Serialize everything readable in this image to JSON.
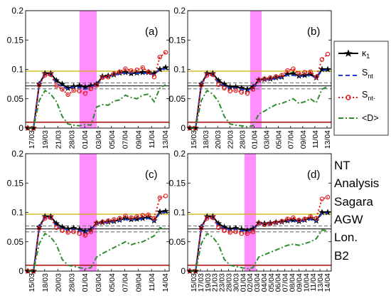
{
  "chart_data": [
    {
      "type": "line",
      "panel_label": "(a)",
      "ylim": [
        0,
        0.2
      ],
      "yticks": [
        0,
        0.05,
        0.1,
        0.15,
        0.2
      ],
      "ytick_labels": [
        "0",
        "0.05",
        "0.1",
        "0.15",
        "0.2"
      ],
      "xtick_labels": [
        "17/03",
        "19/03",
        "21/03",
        "28/03",
        "01/04",
        "03/04",
        "05/04",
        "07/04",
        "09/04",
        "11/04",
        "13/04"
      ],
      "shaded_range": [
        9,
        12
      ],
      "hlines": [
        {
          "y": 0.097,
          "color": "#c9b400",
          "style": "solid"
        },
        {
          "y": 0.077,
          "color": "#7f7f7f",
          "style": "dashed"
        },
        {
          "y": 0.072,
          "color": "#333333",
          "style": "solid"
        },
        {
          "y": 0.067,
          "color": "#7f7f7f",
          "style": "dashed"
        },
        {
          "y": 0.01,
          "color": "#b22222",
          "style": "solid"
        }
      ],
      "series": [
        {
          "name": "κ1",
          "color": "#000000",
          "values": [
            0,
            0,
            0.075,
            0.093,
            0.093,
            0.081,
            0.075,
            0.068,
            0.071,
            0.072,
            0.07,
            0.072,
            0.075,
            0.088,
            0.089,
            0.091,
            0.094,
            0.095,
            0.093,
            0.094,
            0.095,
            0.095,
            0.093,
            0.1,
            0.103
          ]
        },
        {
          "name": "Snt",
          "color": "#1f3fd6",
          "values": [
            0,
            0,
            0.076,
            0.091,
            0.09,
            0.076,
            0.071,
            0.066,
            0.07,
            0.069,
            0.066,
            0.07,
            0.073,
            0.086,
            0.088,
            0.09,
            0.093,
            0.094,
            0.094,
            0.093,
            0.094,
            0.093,
            0.091,
            0.1,
            0.101
          ]
        },
        {
          "name": "Snt-",
          "color": "#e41a1c",
          "values": [
            0,
            0,
            0.073,
            0.09,
            0.091,
            0.072,
            0.066,
            0.057,
            0.064,
            0.063,
            0.059,
            0.067,
            0.073,
            0.086,
            0.087,
            0.093,
            0.096,
            0.101,
            0.098,
            0.099,
            0.103,
            0.096,
            0.087,
            0.121,
            0.129
          ]
        },
        {
          "name": "<D>",
          "color": "#2e8b2e",
          "values": [
            0,
            0,
            0.047,
            0.064,
            0.058,
            0.045,
            0.02,
            0.007,
            0.005,
            0.004,
            0.006,
            0.005,
            0.036,
            0.04,
            0.039,
            0.046,
            0.048,
            0.056,
            0.052,
            0.05,
            0.056,
            0.058,
            0.045,
            0.068,
            0.074
          ]
        }
      ]
    },
    {
      "type": "line",
      "panel_label": "(b)",
      "ylim": [
        0,
        0.2
      ],
      "yticks": [
        0,
        0.05,
        0.1,
        0.15,
        0.2
      ],
      "ytick_labels": [
        "0",
        "0.05",
        "0.1",
        "0.15",
        "0.2"
      ],
      "xtick_labels": [
        "15/03",
        "18/03",
        "20/03",
        "22/03",
        "28/03",
        "01/04",
        "03/04",
        "05/04",
        "07/04",
        "09/04",
        "11/04",
        "13/04"
      ],
      "shaded_range": [
        10.5,
        12.5
      ],
      "hlines": [
        {
          "y": 0.097,
          "color": "#c9b400",
          "style": "solid"
        },
        {
          "y": 0.077,
          "color": "#7f7f7f",
          "style": "dashed"
        },
        {
          "y": 0.072,
          "color": "#333333",
          "style": "solid"
        },
        {
          "y": 0.067,
          "color": "#7f7f7f",
          "style": "dashed"
        },
        {
          "y": 0.01,
          "color": "#b22222",
          "style": "solid"
        }
      ],
      "series": [
        {
          "name": "κ1",
          "color": "#000000",
          "values": [
            0,
            0,
            0.075,
            0.093,
            0.093,
            0.081,
            0.075,
            0.07,
            0.07,
            0.068,
            0.066,
            0.07,
            0.082,
            0.083,
            0.084,
            0.086,
            0.087,
            0.092,
            0.093,
            0.089,
            0.09,
            0.092,
            0.086,
            0.1,
            0.1
          ]
        },
        {
          "name": "Snt",
          "color": "#1f3fd6",
          "values": [
            0,
            0,
            0.076,
            0.091,
            0.09,
            0.076,
            0.072,
            0.068,
            0.068,
            0.066,
            0.064,
            0.068,
            0.081,
            0.082,
            0.083,
            0.084,
            0.086,
            0.09,
            0.09,
            0.088,
            0.089,
            0.09,
            0.085,
            0.098,
            0.099
          ]
        },
        {
          "name": "Snt-",
          "color": "#e41a1c",
          "values": [
            0,
            0,
            0.073,
            0.09,
            0.091,
            0.074,
            0.068,
            0.063,
            0.064,
            0.061,
            0.059,
            0.066,
            0.082,
            0.084,
            0.086,
            0.088,
            0.09,
            0.098,
            0.101,
            0.093,
            0.095,
            0.096,
            0.087,
            0.117,
            0.126
          ]
        },
        {
          "name": "<D>",
          "color": "#2e8b2e",
          "values": [
            0,
            0,
            0.047,
            0.064,
            0.058,
            0.045,
            0.02,
            0.007,
            0.005,
            0.004,
            0.002,
            0.004,
            0.024,
            0.029,
            0.035,
            0.04,
            0.042,
            0.046,
            0.05,
            0.042,
            0.045,
            0.05,
            0.043,
            0.066,
            0.071
          ]
        }
      ]
    },
    {
      "type": "line",
      "panel_label": "(c)",
      "ylim": [
        0,
        0.2
      ],
      "yticks": [
        0,
        0.05,
        0.1,
        0.15,
        0.2
      ],
      "ytick_labels": [
        "0",
        "0.05",
        "0.1",
        "0.15",
        "0.2"
      ],
      "xtick_labels": [
        "15/03",
        "18/03",
        "20/03",
        "28/03",
        "01/04",
        "03/04",
        "05/04",
        "07/04",
        "09/04",
        "11/04",
        "14/04"
      ],
      "shaded_range": [
        9,
        12
      ],
      "hlines": [
        {
          "y": 0.097,
          "color": "#c9b400",
          "style": "solid"
        },
        {
          "y": 0.077,
          "color": "#7f7f7f",
          "style": "dashed"
        },
        {
          "y": 0.072,
          "color": "#333333",
          "style": "solid"
        },
        {
          "y": 0.067,
          "color": "#7f7f7f",
          "style": "dashed"
        },
        {
          "y": 0.01,
          "color": "#b22222",
          "style": "solid"
        }
      ],
      "series": [
        {
          "name": "κ1",
          "color": "#000000",
          "values": [
            0,
            0,
            0.075,
            0.093,
            0.093,
            0.081,
            0.075,
            0.072,
            0.073,
            0.071,
            0.068,
            0.071,
            0.082,
            0.083,
            0.084,
            0.085,
            0.087,
            0.09,
            0.088,
            0.089,
            0.09,
            0.092,
            0.086,
            0.101,
            0.102
          ]
        },
        {
          "name": "Snt",
          "color": "#1f3fd6",
          "values": [
            0,
            0,
            0.076,
            0.091,
            0.09,
            0.076,
            0.073,
            0.07,
            0.071,
            0.069,
            0.067,
            0.07,
            0.081,
            0.082,
            0.083,
            0.084,
            0.086,
            0.088,
            0.087,
            0.088,
            0.089,
            0.09,
            0.085,
            0.099,
            0.1
          ]
        },
        {
          "name": "Snt-",
          "color": "#e41a1c",
          "values": [
            0,
            0,
            0.073,
            0.09,
            0.091,
            0.074,
            0.069,
            0.066,
            0.067,
            0.064,
            0.061,
            0.067,
            0.082,
            0.084,
            0.086,
            0.088,
            0.09,
            0.094,
            0.091,
            0.093,
            0.095,
            0.096,
            0.09,
            0.125,
            0.128
          ]
        },
        {
          "name": "<D>",
          "color": "#2e8b2e",
          "values": [
            0,
            0,
            0.047,
            0.064,
            0.058,
            0.045,
            0.02,
            0.01,
            0.008,
            0.006,
            0.004,
            0.006,
            0.024,
            0.03,
            0.035,
            0.04,
            0.045,
            0.05,
            0.045,
            0.048,
            0.05,
            0.055,
            0.06,
            0.074,
            0.072
          ]
        }
      ]
    },
    {
      "type": "line",
      "panel_label": "(d)",
      "ylim": [
        0,
        0.2
      ],
      "yticks": [
        0,
        0.05,
        0.1,
        0.15,
        0.2
      ],
      "ytick_labels": [
        "0",
        "0.05",
        "0.1",
        "0.15",
        "0.2"
      ],
      "xtick_labels": [
        "15/03",
        "17/03",
        "19/03",
        "21/03",
        "23/03",
        "28/03",
        "30/03",
        "01/04",
        "02/04",
        "03/04",
        "04/04",
        "05/04",
        "06/04",
        "07/04",
        "08/04",
        "09/04",
        "10/04",
        "11/04",
        "13/04",
        "14/04"
      ],
      "shaded_range": [
        9.5,
        11.5
      ],
      "hlines": [
        {
          "y": 0.097,
          "color": "#c9b400",
          "style": "solid"
        },
        {
          "y": 0.077,
          "color": "#7f7f7f",
          "style": "dashed"
        },
        {
          "y": 0.072,
          "color": "#333333",
          "style": "solid"
        },
        {
          "y": 0.067,
          "color": "#7f7f7f",
          "style": "dashed"
        },
        {
          "y": 0.01,
          "color": "#b22222",
          "style": "solid"
        }
      ],
      "series": [
        {
          "name": "κ1",
          "color": "#000000",
          "values": [
            0,
            0,
            0.075,
            0.093,
            0.093,
            0.081,
            0.075,
            0.072,
            0.073,
            0.071,
            0.069,
            0.072,
            0.082,
            0.081,
            0.082,
            0.083,
            0.084,
            0.086,
            0.087,
            0.085,
            0.087,
            0.09,
            0.086,
            0.1,
            0.1
          ]
        },
        {
          "name": "Snt",
          "color": "#1f3fd6",
          "values": [
            0,
            0,
            0.076,
            0.091,
            0.09,
            0.076,
            0.073,
            0.07,
            0.071,
            0.069,
            0.068,
            0.07,
            0.081,
            0.08,
            0.081,
            0.082,
            0.083,
            0.085,
            0.086,
            0.084,
            0.086,
            0.088,
            0.085,
            0.098,
            0.099
          ]
        },
        {
          "name": "Snt-",
          "color": "#e41a1c",
          "values": [
            0,
            0,
            0.073,
            0.09,
            0.091,
            0.074,
            0.069,
            0.066,
            0.067,
            0.064,
            0.064,
            0.067,
            0.082,
            0.079,
            0.081,
            0.083,
            0.085,
            0.089,
            0.091,
            0.087,
            0.089,
            0.093,
            0.09,
            0.123,
            0.126
          ]
        },
        {
          "name": "<D>",
          "color": "#2e8b2e",
          "values": [
            0,
            0,
            0.047,
            0.064,
            0.058,
            0.045,
            0.02,
            0.01,
            0.008,
            0.006,
            0.004,
            0.006,
            0.024,
            0.028,
            0.032,
            0.036,
            0.04,
            0.044,
            0.046,
            0.044,
            0.047,
            0.05,
            0.055,
            0.07,
            0.069
          ]
        }
      ]
    }
  ],
  "legend": {
    "entries": [
      {
        "label": "κ",
        "sub": "1",
        "color": "#000000",
        "style": "solid-star"
      },
      {
        "label": "S",
        "sub": "nt",
        "color": "#1f3fd6",
        "style": "dashed"
      },
      {
        "label": "S",
        "sub": "nt-",
        "color": "#e41a1c",
        "style": "dotted-circle"
      },
      {
        "label": "<D>",
        "sub": "",
        "color": "#2e8b2e",
        "style": "dashdot"
      }
    ]
  },
  "info_labels": [
    "NT",
    "Analysis",
    "Sagara",
    "AGW",
    "Lon.",
    "B2"
  ]
}
